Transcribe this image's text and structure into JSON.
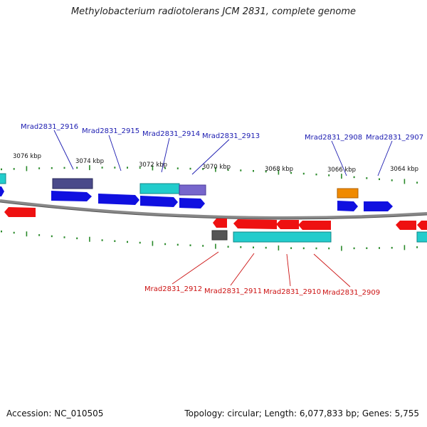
{
  "title": "Methylobacterium radiotolerans JCM 2831, complete genome",
  "footer": {
    "accession": "Accession: NC_010505",
    "summary": "Topology: circular; Length: 6,077,833 bp; Genes: 5,755"
  },
  "scale_labels": [
    "3076 kbp",
    "3074 kbp",
    "3072 kbp",
    "3070 kbp",
    "3068 kbp",
    "3066 kbp",
    "3064 kbp"
  ],
  "gene_labels_top": [
    "Mrad2831_2916",
    "Mrad2831_2915",
    "Mrad2831_2914",
    "Mrad2831_2913",
    "Mrad2831_2908",
    "Mrad2831_2907"
  ],
  "gene_labels_bottom": [
    "Mrad2831_2912",
    "Mrad2831_2911",
    "Mrad2831_2910",
    "Mrad2831_2909"
  ],
  "colors": {
    "forward": "#1010e0",
    "reverse": "#ee1111",
    "top_label": "#1a1ab0",
    "bottom_label": "#cc1111",
    "cyan": "#22cccc",
    "slate": "#4a4a8a",
    "lavender": "#7766cc",
    "orange": "#f08a00",
    "gray": "#555555",
    "tick": "#2a8a2a"
  }
}
